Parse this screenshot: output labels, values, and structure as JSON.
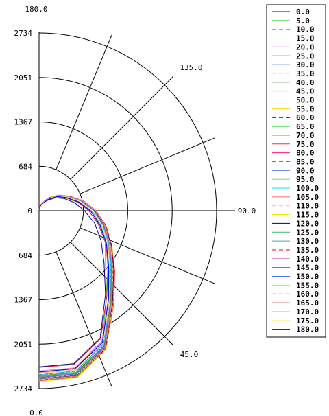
{
  "chart_data": {
    "type": "polar-line",
    "title": "",
    "radial_ticks": [
      "0",
      "684",
      "1367",
      "2051",
      "2734"
    ],
    "radial_max": 2734,
    "angle_ticks": [
      "0.0",
      "45.0",
      "90.0",
      "135.0",
      "180.0"
    ],
    "grid": true,
    "legend": "right",
    "series": [
      {
        "name": "0.0",
        "color": "#00008b",
        "dash": "solid",
        "values": [
          2400,
          2410,
          2170,
          1640,
          1280,
          1060,
          880,
          700,
          560,
          430,
          320,
          200,
          130,
          70,
          20
        ]
      },
      {
        "name": "5.0",
        "color": "#32cd32",
        "dash": "solid",
        "values": [
          2475,
          2489,
          2241,
          1673,
          1308,
          1131,
          944,
          799,
          600,
          456,
          339,
          217,
          122,
          71,
          27
        ]
      },
      {
        "name": "10.0",
        "color": "#20b2aa",
        "dash": "dash",
        "values": [
          2551,
          2565,
          2320,
          1774,
          1410,
          1184,
          997,
          839,
          662,
          498,
          370,
          246,
          150,
          85,
          31
        ]
      },
      {
        "name": "15.0",
        "color": "#dc143c",
        "dash": "solid",
        "values": [
          2408,
          2424,
          2185,
          1675,
          1355,
          1142,
          937,
          765,
          612,
          459,
          339,
          216,
          118,
          67,
          18
        ]
      },
      {
        "name": "20.0",
        "color": "#ff00ff",
        "dash": "solid",
        "values": [
          2473,
          2483,
          2255,
          1741,
          1406,
          1182,
          1009,
          844,
          663,
          492,
          359,
          244,
          142,
          79,
          27
        ]
      },
      {
        "name": "25.0",
        "color": "#8b6914",
        "dash": "solid",
        "values": [
          2556,
          2568,
          2313,
          1798,
          1433,
          1239,
          1023,
          863,
          682,
          511,
          378,
          252,
          152,
          87,
          30
        ]
      },
      {
        "name": "30.0",
        "color": "#6495ed",
        "dash": "solid",
        "values": [
          2525,
          2524,
          2276,
          1784,
          1446,
          1216,
          1032,
          839,
          656,
          517,
          362,
          240,
          140,
          73,
          26
        ]
      },
      {
        "name": "35.0",
        "color": "#98fb98",
        "dash": "dash",
        "values": [
          2496,
          2501,
          2244,
          1713,
          1366,
          1158,
          975,
          828,
          623,
          472,
          342,
          227,
          124,
          66,
          21
        ]
      },
      {
        "name": "40.0",
        "color": "#228b22",
        "dash": "solid",
        "values": [
          2471,
          2487,
          2233,
          1735,
          1390,
          1169,
          982,
          796,
          630,
          485,
          358,
          225,
          132,
          77,
          24
        ]
      },
      {
        "name": "45.0",
        "color": "#fa8072",
        "dash": "solid",
        "values": [
          2493,
          2511,
          2259,
          1730,
          1396,
          1159,
          975,
          802,
          636,
          486,
          352,
          229,
          126,
          73,
          22
        ]
      },
      {
        "name": "50.0",
        "color": "#ee82ee",
        "dash": "solid",
        "values": [
          2574,
          2589,
          2346,
          1779,
          1420,
          1188,
          1015,
          851,
          682,
          503,
          388,
          258,
          158,
          85,
          35
        ]
      },
      {
        "name": "55.0",
        "color": "#ffd700",
        "dash": "solid",
        "values": [
          2474,
          2478,
          2242,
          1716,
          1401,
          1167,
          987,
          807,
          638,
          477,
          356,
          233,
          130,
          71,
          24
        ]
      },
      {
        "name": "60.0",
        "color": "#0000cd",
        "dash": "dash",
        "values": [
          2612,
          2622,
          2358,
          1815,
          1451,
          1248,
          1041,
          871,
          679,
          521,
          374,
          258,
          151,
          88,
          34
        ]
      },
      {
        "name": "65.0",
        "color": "#00cd00",
        "dash": "solid",
        "values": [
          2565,
          2576,
          2333,
          1808,
          1441,
          1232,
          1030,
          855,
          669,
          513,
          369,
          249,
          139,
          77,
          26
        ]
      },
      {
        "name": "70.0",
        "color": "#008b8b",
        "dash": "solid",
        "values": [
          2578,
          2588,
          2353,
          1793,
          1434,
          1213,
          1022,
          856,
          687,
          518,
          371,
          244,
          151,
          82,
          30
        ]
      },
      {
        "name": "75.0",
        "color": "#ff3030",
        "dash": "solid",
        "values": [
          2617,
          2624,
          2367,
          1843,
          1492,
          1237,
          1056,
          879,
          699,
          518,
          377,
          250,
          149,
          82,
          34
        ]
      },
      {
        "name": "80.0",
        "color": "#ff1493",
        "dash": "solid",
        "values": [
          2502,
          2513,
          2262,
          1726,
          1395,
          1164,
          972,
          808,
          636,
          493,
          354,
          238,
          134,
          75,
          28
        ]
      },
      {
        "name": "85.0",
        "color": "#6b8e23",
        "dash": "dash",
        "values": [
          2520,
          2530,
          2283,
          1747,
          1396,
          1182,
          1011,
          817,
          652,
          492,
          364,
          235,
          134,
          80,
          27
        ]
      },
      {
        "name": "90.0",
        "color": "#4169e1",
        "dash": "solid",
        "values": [
          2583,
          2591,
          2335,
          1795,
          1446,
          1221,
          1022,
          851,
          683,
          501,
          379,
          252,
          144,
          87,
          30
        ]
      },
      {
        "name": "95.0",
        "color": "#7ccd7c",
        "dash": "solid",
        "values": [
          2608,
          2616,
          2367,
          1811,
          1447,
          1220,
          1040,
          865,
          678,
          503,
          379,
          249,
          149,
          81,
          32
        ]
      },
      {
        "name": "100.0",
        "color": "#00eeee",
        "dash": "solid",
        "values": [
          2482,
          2493,
          2240,
          1729,
          1380,
          1162,
          975,
          808,
          635,
          475,
          354,
          230,
          128,
          70,
          19
        ]
      },
      {
        "name": "105.0",
        "color": "#ff6a6a",
        "dash": "solid",
        "values": [
          2552,
          2563,
          2315,
          1789,
          1440,
          1197,
          1022,
          834,
          670,
          496,
          364,
          243,
          136,
          75,
          29
        ]
      },
      {
        "name": "110.0",
        "color": "#ffb6c1",
        "dash": "dash",
        "values": [
          2576,
          2589,
          2338,
          1786,
          1459,
          1228,
          1032,
          850,
          674,
          509,
          366,
          249,
          147,
          84,
          30
        ]
      },
      {
        "name": "115.0",
        "color": "#eeee00",
        "dash": "solid",
        "values": [
          2629,
          2634,
          2373,
          1832,
          1467,
          1249,
          1046,
          869,
          693,
          519,
          385,
          261,
          153,
          88,
          31
        ]
      },
      {
        "name": "120.0",
        "color": "#000080",
        "dash": "solid",
        "values": [
          2591,
          2602,
          2344,
          1811,
          1474,
          1239,
          1039,
          853,
          670,
          516,
          375,
          244,
          139,
          85,
          29
        ]
      },
      {
        "name": "125.0",
        "color": "#3cb371",
        "dash": "solid",
        "values": [
          2540,
          2556,
          2311,
          1773,
          1423,
          1194,
          1001,
          839,
          660,
          496,
          371,
          249,
          145,
          82,
          26
        ]
      },
      {
        "name": "130.0",
        "color": "#5f9ea0",
        "dash": "solid",
        "values": [
          2552,
          2556,
          2302,
          1788,
          1434,
          1211,
          1012,
          844,
          671,
          500,
          371,
          238,
          144,
          80,
          29
        ]
      },
      {
        "name": "135.0",
        "color": "#ff0000",
        "dash": "dash",
        "values": [
          2599,
          2612,
          2365,
          1827,
          1463,
          1247,
          1061,
          872,
          690,
          517,
          384,
          259,
          157,
          87,
          31
        ]
      },
      {
        "name": "140.0",
        "color": "#da70d6",
        "dash": "solid",
        "values": [
          2465,
          2476,
          2228,
          1713,
          1366,
          1145,
          959,
          802,
          633,
          470,
          357,
          232,
          128,
          67,
          23
        ]
      },
      {
        "name": "145.0",
        "color": "#8b7500",
        "dash": "solid",
        "values": [
          2537,
          2546,
          2312,
          1770,
          1412,
          1178,
          1013,
          829,
          660,
          493,
          362,
          245,
          136,
          75,
          27
        ]
      },
      {
        "name": "150.0",
        "color": "#4876ff",
        "dash": "solid",
        "values": [
          2567,
          2573,
          2324,
          1805,
          1432,
          1203,
          1023,
          851,
          666,
          500,
          367,
          240,
          144,
          82,
          29
        ]
      },
      {
        "name": "155.0",
        "color": "#90ee90",
        "dash": "solid",
        "values": [
          2529,
          2542,
          2284,
          1750,
          1409,
          1199,
          1003,
          830,
          652,
          486,
          364,
          236,
          138,
          81,
          27
        ]
      },
      {
        "name": "160.0",
        "color": "#00bfff",
        "dash": "dash",
        "values": [
          2528,
          2534,
          2286,
          1758,
          1412,
          1205,
          1005,
          819,
          654,
          495,
          367,
          240,
          141,
          80,
          24
        ]
      },
      {
        "name": "165.0",
        "color": "#f08080",
        "dash": "solid",
        "values": [
          2593,
          2607,
          2343,
          1802,
          1438,
          1219,
          1040,
          871,
          686,
          507,
          379,
          251,
          146,
          85,
          32
        ]
      },
      {
        "name": "170.0",
        "color": "#eeaeee",
        "dash": "solid",
        "values": [
          2500,
          2509,
          2266,
          1754,
          1390,
          1167,
          987,
          821,
          644,
          481,
          358,
          228,
          133,
          76,
          24
        ]
      },
      {
        "name": "175.0",
        "color": "#ffec8b",
        "dash": "solid",
        "values": [
          2508,
          2517,
          2259,
          1734,
          1394,
          1176,
          993,
          825,
          651,
          479,
          361,
          237,
          136,
          75,
          26
        ]
      },
      {
        "name": "180.0",
        "color": "#0000ff",
        "dash": "solid",
        "values": [
          2480,
          2490,
          2250,
          1720,
          1370,
          1150,
          960,
          790,
          620,
          470,
          350,
          225,
          125,
          68,
          22
        ]
      }
    ]
  }
}
